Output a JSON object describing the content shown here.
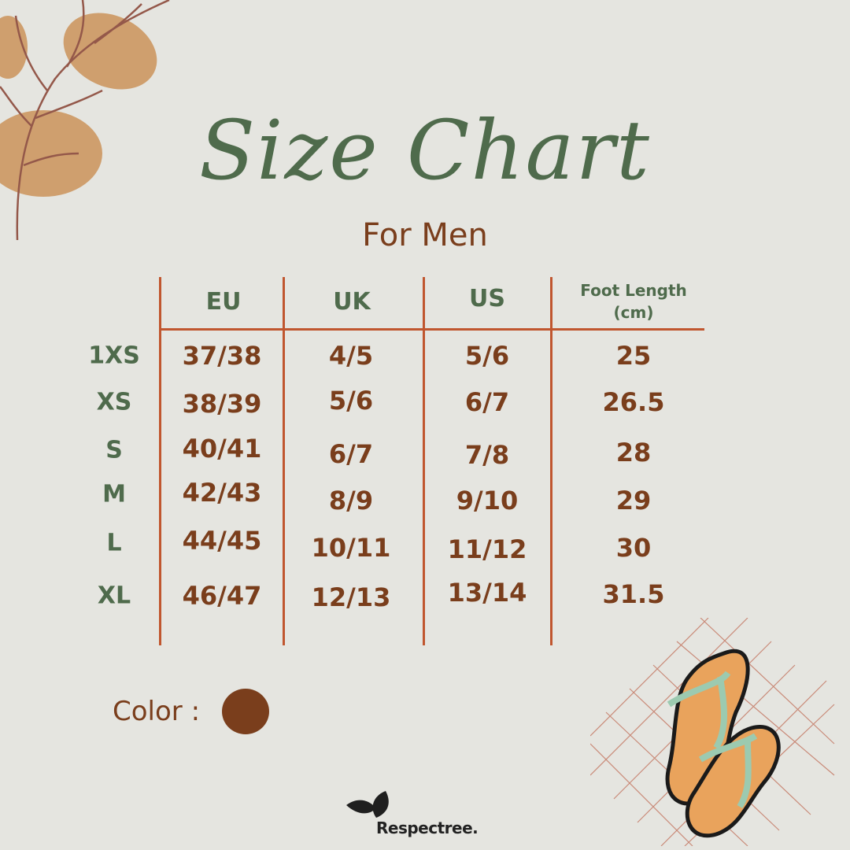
{
  "title": "Size Chart",
  "subtitle": "For Men",
  "table": {
    "headers": [
      "EU",
      "UK",
      "US",
      "Foot Length (cm)"
    ],
    "header_foot_line1": "Foot Length",
    "header_foot_line2": "(cm)",
    "rows": [
      {
        "size": "1XS",
        "eu": "37/38",
        "uk": "4/5",
        "us": "5/6",
        "foot": "25"
      },
      {
        "size": "XS",
        "eu": "38/39",
        "uk": "5/6",
        "us": "6/7",
        "foot": "26.5"
      },
      {
        "size": "S",
        "eu": "40/41",
        "uk": "6/7",
        "us": "7/8",
        "foot": "28"
      },
      {
        "size": "M",
        "eu": "42/43",
        "uk": "8/9",
        "us": "9/10",
        "foot": "29"
      },
      {
        "size": "L",
        "eu": "44/45",
        "uk": "10/11",
        "us": "11/12",
        "foot": "30"
      },
      {
        "size": "XL",
        "eu": "46/47",
        "uk": "12/13",
        "us": "13/14",
        "foot": "31.5"
      }
    ]
  },
  "color_label": "Color :",
  "color_swatch": "#7a3e1c",
  "brand": "Respectree.",
  "colors": {
    "green": "#4f6b4c",
    "brown": "#7a3e1c",
    "line": "#c0562f",
    "background": "#e5e5e0"
  }
}
